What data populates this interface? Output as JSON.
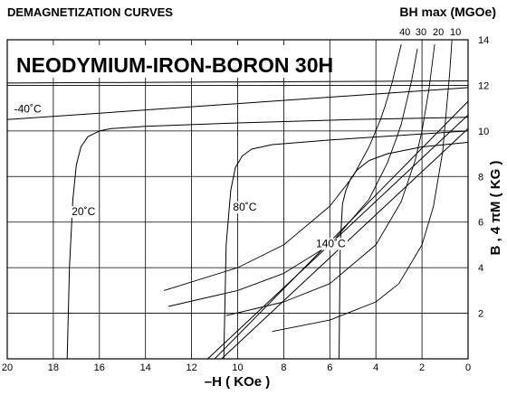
{
  "chart_data": {
    "type": "line",
    "header_left": "DEMAGNETIZATION CURVES",
    "header_right": "BH max (MGOe)",
    "title": "NEODYMIUM-IRON-BORON 30H",
    "xlabel": "–H ( KOe )",
    "ylabel": "B , 4 πM ( KG )",
    "xlim": [
      20,
      0
    ],
    "ylim": [
      0,
      14
    ],
    "x_ticks": [
      20,
      18,
      16,
      14,
      12,
      10,
      8,
      6,
      4,
      2,
      0
    ],
    "x_tick_labels": [
      "20",
      "18",
      "16",
      "14",
      "12",
      "10",
      "8",
      "6",
      "4",
      "2",
      "0"
    ],
    "y_ticks": [
      2,
      4,
      6,
      8,
      10,
      12,
      14
    ],
    "y_tick_labels": [
      "2",
      "4",
      "6",
      "8",
      "10",
      "12",
      "14"
    ],
    "grid": true,
    "bhmax_labels": [
      {
        "text": "40",
        "value": 40
      },
      {
        "text": "30",
        "value": 30
      },
      {
        "text": "20",
        "value": 20
      },
      {
        "text": "10",
        "value": 10
      }
    ],
    "temperature_labels": [
      {
        "text": "-40˚C",
        "x": 19.7,
        "y": 10.8
      },
      {
        "text": "20˚C",
        "x": 17.2,
        "y": 6.3
      },
      {
        "text": "80˚C",
        "x": 10.2,
        "y": 6.5
      },
      {
        "text": "140˚C",
        "x": 6.6,
        "y": 4.9
      }
    ],
    "series": [
      {
        "B": {
          "x": [
            20,
            0
          ],
          "y": [
            10.5,
            11.9
          ]
        },
        "J": {
          "x": [
            20,
            0
          ],
          "y": [
            12.1,
            12.2
          ]
        }
      },
      {
        "B": {
          "x": [
            11,
            0
          ],
          "y": [
            0,
            11.3
          ]
        },
        "J": {
          "x": [
            17.4,
            17.3,
            17.15,
            17.0,
            16.8,
            16.5,
            16.0,
            15.5,
            14.0,
            10.0,
            5.0,
            0
          ],
          "y": [
            0,
            4,
            7,
            8.5,
            9.3,
            9.75,
            10.0,
            10.1,
            10.2,
            10.35,
            10.5,
            10.6
          ]
        }
      },
      {
        "B": {
          "x": [
            11.3,
            0
          ],
          "y": [
            0,
            10.7
          ]
        },
        "J": {
          "x": [
            10.6,
            10.5,
            10.3,
            10.1,
            9.8,
            9.4,
            8.5,
            6.0,
            3.0,
            0
          ],
          "y": [
            0,
            5,
            7.4,
            8.4,
            8.9,
            9.2,
            9.4,
            9.6,
            9.8,
            10.0
          ]
        }
      },
      {
        "B": {
          "x": [
            10.7,
            0
          ],
          "y": [
            0,
            10.1
          ]
        },
        "J": {
          "x": [
            5.6,
            5.55,
            5.45,
            5.3,
            5.1,
            4.8,
            4.3,
            3.5,
            2.0,
            0
          ],
          "y": [
            0,
            5.0,
            6.8,
            7.4,
            7.9,
            8.3,
            8.7,
            9.0,
            9.3,
            9.5
          ]
        }
      }
    ],
    "bhmax_curves": [
      {
        "value": 40,
        "x": [
          13.2,
          10,
          8,
          6,
          5,
          4.3,
          3.8,
          3.6,
          3.3,
          2.9
        ],
        "y": [
          3.0,
          4.0,
          5.0,
          6.7,
          8.0,
          9.3,
          10.5,
          11.1,
          12.1,
          13.8
        ]
      },
      {
        "value": 30,
        "x": [
          13.0,
          10,
          8,
          6,
          4.3,
          3.5,
          3.1,
          2.9,
          2.45,
          2.2
        ],
        "y": [
          2.3,
          3.0,
          3.75,
          5.0,
          7.0,
          8.6,
          9.7,
          10.3,
          12.2,
          13.6
        ]
      },
      {
        "value": 20,
        "x": [
          10.5,
          8,
          6,
          4,
          2.9,
          2.3,
          2.0,
          1.7,
          1.45
        ],
        "y": [
          1.9,
          2.5,
          3.3,
          5.0,
          6.9,
          8.7,
          10.0,
          11.8,
          13.8
        ]
      },
      {
        "value": 10,
        "x": [
          8.5,
          6,
          4,
          3,
          2,
          1.5,
          1.1,
          0.8,
          0.7
        ],
        "y": [
          1.2,
          1.7,
          2.5,
          3.3,
          5.0,
          6.7,
          9.1,
          12.5,
          14.0
        ]
      }
    ]
  }
}
